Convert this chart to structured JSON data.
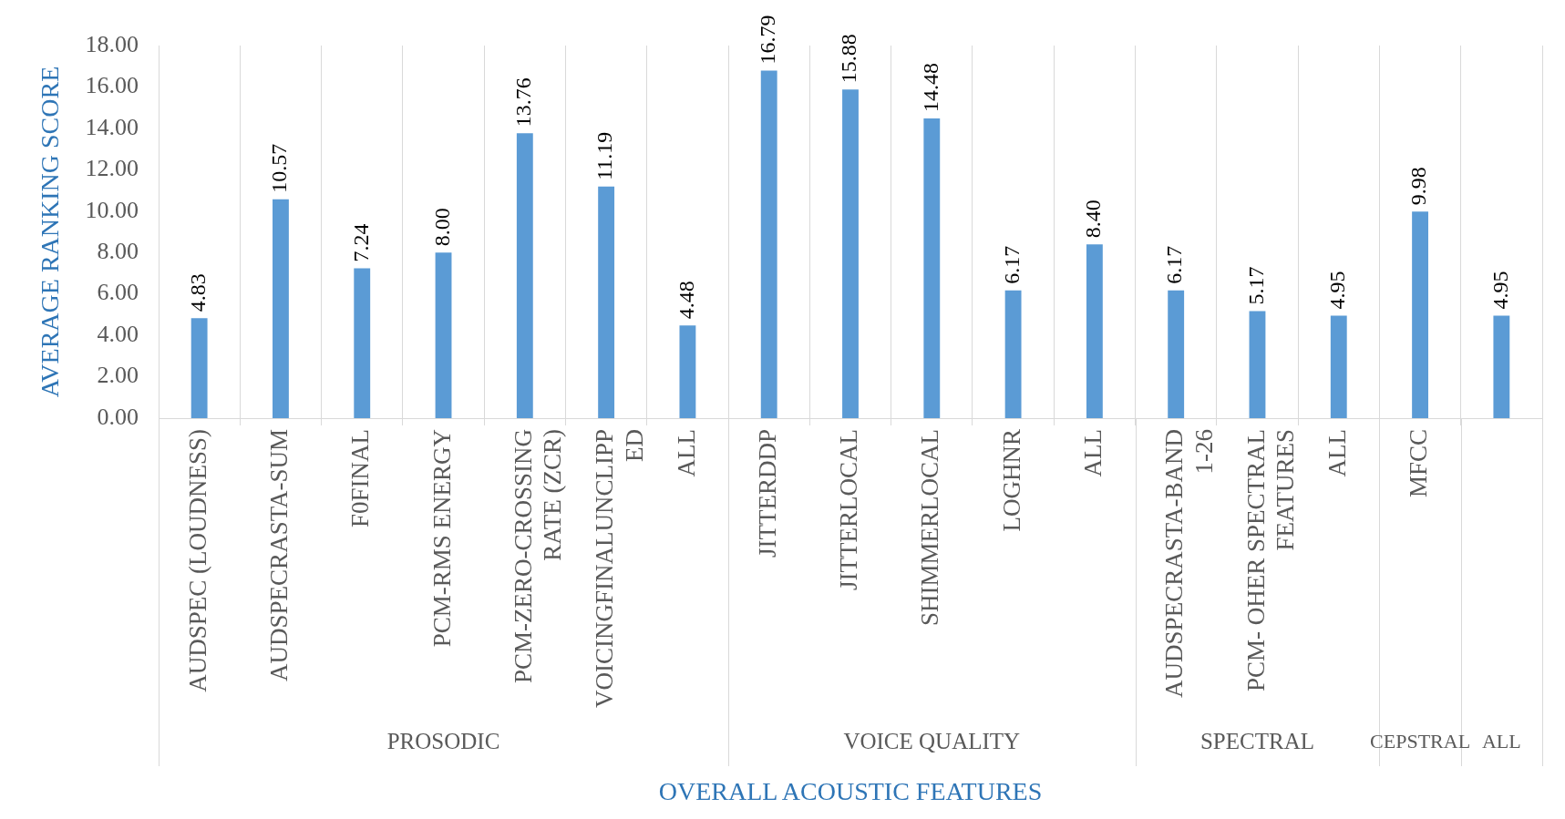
{
  "chart_data": {
    "type": "bar",
    "xlabel": "OVERALL ACOUSTIC FEATURES",
    "ylabel": "AVERAGE RANKING SCORE",
    "categories": [
      "AUDSPEC (LOUDNESS)",
      "AUDSPECRASTA-SUM",
      "F0FINAL",
      "PCM-RMS ENERGY",
      "PCM-ZERO-CROSSING RATE (ZCR)",
      "VOICINGFINALUNCLIPPED",
      "ALL",
      "JITTERDDP",
      "JITTERLOCAL",
      "SHIMMERLOCAL",
      "LOGHNR",
      "ALL",
      "AUDSPECRASTA-BAND 1-26",
      "PCM- OHER SPECTRAL FEATURES",
      "ALL",
      "MFCC",
      null
    ],
    "values": [
      4.83,
      10.57,
      7.24,
      8.0,
      13.76,
      11.19,
      4.48,
      16.79,
      15.88,
      14.48,
      6.17,
      8.4,
      6.17,
      5.17,
      4.95,
      9.98,
      4.95
    ],
    "value_labels": [
      "4.83",
      "10.57",
      "7.24",
      "8.00",
      "13.76",
      "11.19",
      "4.48",
      "16.79",
      "15.88",
      "14.48",
      "6.17",
      "8.40",
      "6.17",
      "5.17",
      "4.95",
      "9.98",
      "4.95"
    ],
    "color": "#5b9bd5",
    "ylim": [
      0,
      18
    ],
    "yticks": [
      {
        "value": 0,
        "label": "0.00"
      },
      {
        "value": 2,
        "label": "2.00"
      },
      {
        "value": 4,
        "label": "4.00"
      },
      {
        "value": 6,
        "label": "6.00"
      },
      {
        "value": 8,
        "label": "8.00"
      },
      {
        "value": 10,
        "label": "10.00"
      },
      {
        "value": 12,
        "label": "12.00"
      },
      {
        "value": 14,
        "label": "14.00"
      },
      {
        "value": 16,
        "label": "16.00"
      },
      {
        "value": 18,
        "label": "18.00"
      }
    ],
    "grid": "x",
    "annotations": [
      "PROSODIC",
      "VOICE QUALITY",
      "SPECTRAL",
      "CEPSTRAL",
      "ALL"
    ]
  }
}
